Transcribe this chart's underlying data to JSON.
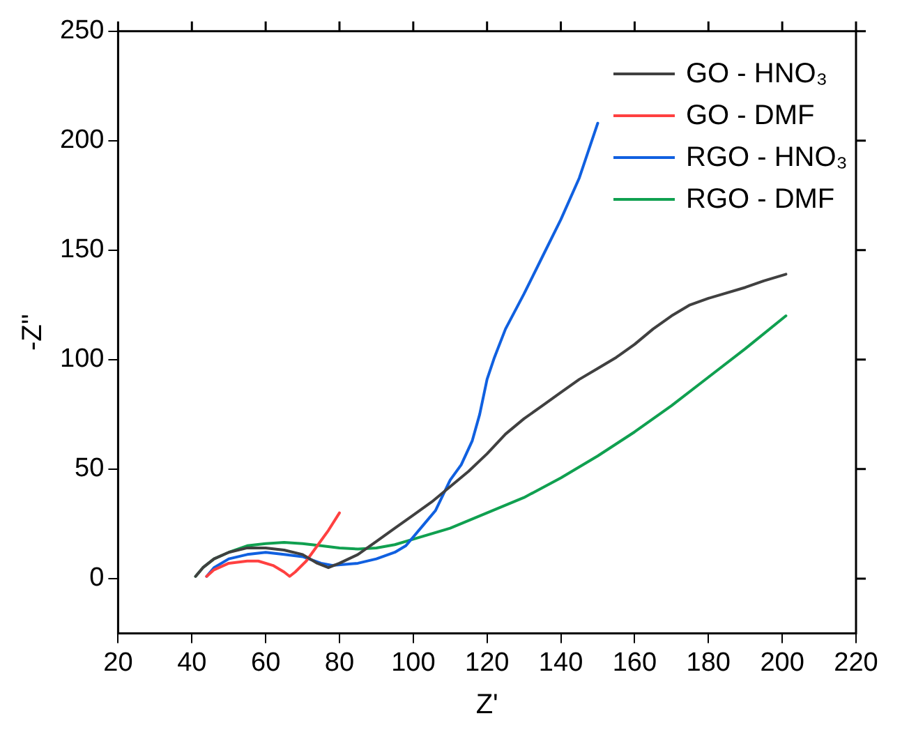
{
  "chart_data": {
    "type": "line",
    "xlabel": "Z'",
    "ylabel": "-Z''",
    "xlim": [
      20,
      220
    ],
    "ylim": [
      -25,
      250
    ],
    "xticks": [
      20,
      40,
      60,
      80,
      100,
      120,
      140,
      160,
      180,
      200,
      220
    ],
    "yticks": [
      0,
      50,
      100,
      150,
      200,
      250
    ],
    "legend": "top right",
    "grid": false,
    "marker": "none",
    "line_style": "solid",
    "series": [
      {
        "name": "GO - HNO₃",
        "color": "#404040",
        "x": [
          41,
          43,
          46,
          50,
          55,
          60,
          65,
          70,
          74,
          77,
          80,
          85,
          90,
          95,
          100,
          105,
          110,
          115,
          120,
          125,
          130,
          135,
          140,
          145,
          150,
          155,
          160,
          165,
          170,
          175,
          180,
          190,
          195,
          201
        ],
        "values": [
          1,
          5,
          9,
          12,
          14,
          14,
          13,
          11,
          7,
          5,
          7,
          11,
          17,
          23,
          29,
          35,
          42,
          49,
          57,
          66,
          73,
          79,
          85,
          91,
          96,
          101,
          107,
          114,
          120,
          125,
          128,
          133,
          136,
          139
        ]
      },
      {
        "name": "GO - DMF",
        "color": "#ff4040",
        "x": [
          44,
          46,
          50,
          55,
          58,
          62,
          65,
          66.5,
          68,
          71,
          74,
          77,
          80
        ],
        "values": [
          1,
          4,
          7,
          8,
          8,
          6,
          3,
          1,
          3,
          8,
          15,
          22,
          30
        ]
      },
      {
        "name": "RGO - HNO₃",
        "color": "#1060e0",
        "x": [
          44,
          46,
          50,
          55,
          60,
          65,
          70,
          75,
          78,
          85,
          90,
          95,
          98,
          100,
          103,
          106,
          108,
          110,
          113,
          116,
          118,
          120,
          122,
          125,
          130,
          135,
          140,
          145,
          150
        ],
        "values": [
          1,
          5,
          9,
          11,
          12,
          11,
          10,
          7,
          6,
          7,
          9,
          12,
          15,
          19,
          25,
          31,
          38,
          45,
          52,
          63,
          75,
          91,
          101,
          114,
          130,
          147,
          164,
          183,
          208
        ]
      },
      {
        "name": "RGO - DMF",
        "color": "#10a050",
        "x": [
          41,
          43,
          46,
          50,
          55,
          60,
          65,
          70,
          75,
          80,
          85,
          90,
          95,
          100,
          110,
          120,
          130,
          140,
          150,
          160,
          170,
          180,
          190,
          201
        ],
        "values": [
          1,
          5,
          9,
          12,
          15,
          16,
          16.5,
          16,
          15,
          14,
          13.5,
          14,
          15.5,
          18,
          23,
          30,
          37,
          46,
          56,
          67,
          79,
          92,
          105,
          120
        ]
      }
    ]
  }
}
